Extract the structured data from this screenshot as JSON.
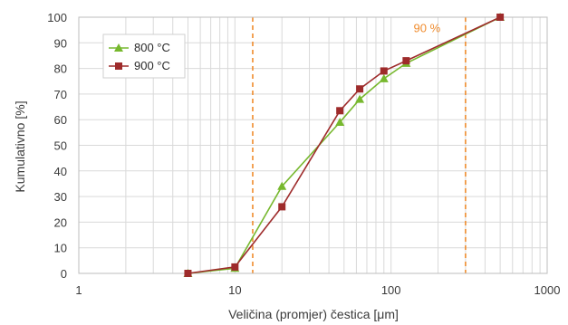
{
  "chart_data": {
    "type": "line",
    "xscale": "log",
    "xlim": [
      1,
      1000
    ],
    "ylim": [
      0,
      100
    ],
    "xlabel": "Veličina (promjer) čestica [μm]",
    "ylabel": "Kumulativno [%]",
    "x_ticks": [
      "1",
      "10",
      "100",
      "1000"
    ],
    "y_ticks": [
      "0",
      "10",
      "20",
      "30",
      "40",
      "50",
      "60",
      "70",
      "80",
      "90",
      "100"
    ],
    "grid": true,
    "legend_position": "top-left",
    "series": [
      {
        "name": "800 °C",
        "color": "#77b82e",
        "marker": "triangle",
        "x": [
          5,
          10,
          20,
          47,
          63,
          90,
          125,
          500
        ],
        "y": [
          0,
          2,
          34,
          59,
          68,
          76,
          82,
          100
        ]
      },
      {
        "name": "900 °C",
        "color": "#9e2b2b",
        "marker": "square",
        "x": [
          5,
          10,
          20,
          47,
          63,
          90,
          125,
          500
        ],
        "y": [
          0,
          2.5,
          26,
          63.5,
          72,
          79,
          83,
          100
        ]
      }
    ],
    "reference_lines": [
      {
        "x": 13,
        "color": "#f08c2e"
      },
      {
        "x": 300,
        "color": "#f08c2e"
      }
    ],
    "annotations": [
      {
        "text": "90 %",
        "x": 170,
        "y": 96,
        "color": "#f08c2e"
      }
    ]
  }
}
